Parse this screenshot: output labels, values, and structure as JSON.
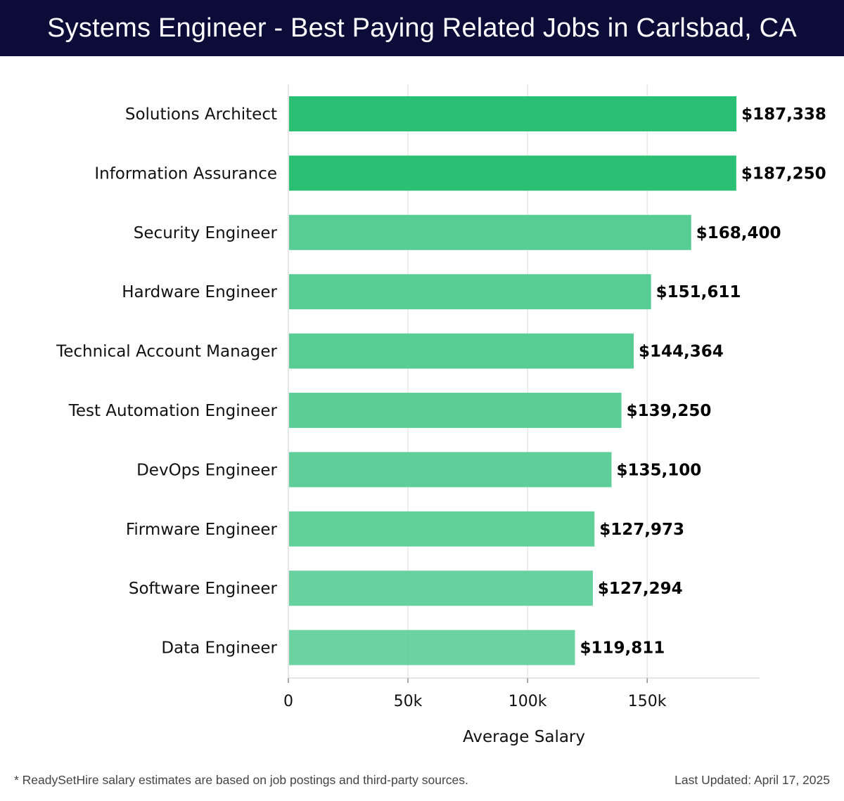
{
  "header": {
    "title": "Systems Engineer - Best Paying Related Jobs in Carlsbad, CA"
  },
  "footer": {
    "note": "* ReadySetHire salary estimates are based on job postings and third-party sources.",
    "updated": "Last Updated: April 17, 2025"
  },
  "chart_data": {
    "type": "bar",
    "orientation": "horizontal",
    "title": "Systems Engineer - Best Paying Related Jobs in Carlsbad, CA",
    "xlabel": "Average Salary",
    "ylabel": "",
    "xlim": [
      0,
      197000
    ],
    "xticks": [
      0,
      50000,
      100000,
      150000
    ],
    "xtick_labels": [
      "0",
      "50k",
      "100k",
      "150k"
    ],
    "grid": true,
    "categories": [
      "Solutions Architect",
      "Information Assurance",
      "Security Engineer",
      "Hardware Engineer",
      "Technical Account Manager",
      "Test Automation Engineer",
      "DevOps Engineer",
      "Firmware Engineer",
      "Software Engineer",
      "Data Engineer"
    ],
    "values": [
      187338,
      187250,
      168400,
      151611,
      144364,
      139250,
      135100,
      127973,
      127294,
      119811
    ],
    "value_labels": [
      "$187,338",
      "$187,250",
      "$168,400",
      "$151,611",
      "$144,364",
      "$139,250",
      "$135,100",
      "$127,973",
      "$127,294",
      "$119,811"
    ],
    "colors": {
      "bar_strong": "#2ac074",
      "bar_light": "#57cc95",
      "grid": "#dddddd"
    }
  }
}
